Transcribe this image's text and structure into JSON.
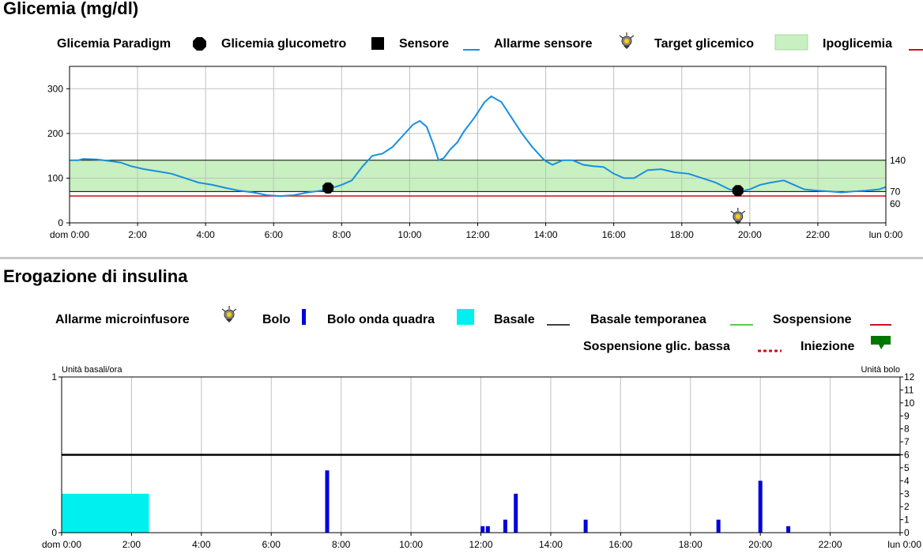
{
  "glucose_section": {
    "title": "Glicemia (mg/dl)",
    "legend": {
      "paradigm": "Glicemia Paradigm",
      "meter": "Glicemia glucometro",
      "sensor": "Sensore",
      "sensor_alarm": "Allarme sensore",
      "target": "Target glicemico",
      "hypo": "Ipoglicemia"
    }
  },
  "insulin_section": {
    "title": "Erogazione di insulina",
    "legend": {
      "pump_alarm": "Allarme microinfusore",
      "bolus": "Bolo",
      "square_bolus": "Bolo onda quadra",
      "basal": "Basale",
      "temp_basal": "Basale temporanea",
      "suspend": "Sospensione",
      "low_suspend": "Sospensione glic. bassa",
      "injection": "Iniezione"
    }
  },
  "colors": {
    "sensor": "#1a8fe0",
    "target_fill": "#c8f0c0",
    "hypo": "#c81414",
    "bolus": "#0000dd",
    "square_bolus": "#00f0f0",
    "temp_basal": "#22bb22",
    "injection": "#007700",
    "grid": "#c0c0c0"
  },
  "chart_data": [
    {
      "type": "line",
      "title": "Glicemia (mg/dl)",
      "xlim": [
        0,
        24
      ],
      "ylim": [
        0,
        350
      ],
      "x_ticks": [
        0,
        2,
        4,
        6,
        8,
        10,
        12,
        14,
        16,
        18,
        20,
        22,
        24
      ],
      "x_tick_labels": [
        "dom 0:00",
        "2:00",
        "4:00",
        "6:00",
        "8:00",
        "10:00",
        "12:00",
        "14:00",
        "16:00",
        "18:00",
        "20:00",
        "22:00",
        "lun 0:00"
      ],
      "y_ticks": [
        0,
        100,
        200,
        300
      ],
      "y_tick_labels": [
        "0",
        "100",
        "200",
        "300"
      ],
      "right_ticks": [
        140,
        70,
        60
      ],
      "right_tick_labels": [
        "140",
        "70",
        "60"
      ],
      "target_range": [
        70,
        140
      ],
      "hypo_threshold": 60,
      "grid": true,
      "series": [
        {
          "name": "Sensore",
          "x": [
            0,
            0.25,
            0.4,
            0.8,
            1.2,
            1.5,
            1.8,
            2.2,
            2.6,
            3.0,
            3.4,
            3.8,
            4.2,
            4.6,
            5.0,
            5.4,
            5.8,
            6.2,
            6.6,
            7.0,
            7.4,
            7.6,
            7.8,
            8.0,
            8.3,
            8.6,
            8.9,
            9.2,
            9.5,
            9.8,
            10.1,
            10.3,
            10.5,
            10.7,
            10.85,
            11.0,
            11.2,
            11.4,
            11.6,
            11.9,
            12.2,
            12.4,
            12.7,
            13.0,
            13.3,
            13.6,
            13.9,
            14.0,
            14.2,
            14.5,
            14.8,
            15.1,
            15.4,
            15.7,
            16.0,
            16.3,
            16.6,
            17.0,
            17.4,
            17.8,
            18.2,
            18.6,
            19.0,
            19.4,
            19.6,
            19.8,
            20.0,
            20.3,
            20.6,
            21.0,
            21.3,
            21.6,
            22.0,
            22.4,
            22.7,
            23.0,
            23.4,
            23.8,
            24.0
          ],
          "y": [
            140,
            140,
            143,
            142,
            138,
            135,
            127,
            120,
            115,
            110,
            100,
            90,
            85,
            78,
            72,
            68,
            62,
            60,
            62,
            68,
            72,
            78,
            80,
            85,
            95,
            125,
            150,
            155,
            170,
            195,
            220,
            228,
            215,
            175,
            140,
            145,
            165,
            180,
            205,
            235,
            270,
            283,
            270,
            235,
            200,
            170,
            145,
            138,
            130,
            140,
            140,
            130,
            127,
            125,
            110,
            100,
            100,
            118,
            120,
            113,
            110,
            100,
            90,
            75,
            72,
            72,
            75,
            85,
            90,
            95,
            85,
            75,
            72,
            70,
            68,
            70,
            72,
            75,
            80
          ]
        },
        {
          "name": "Glicemia Paradigm",
          "x": [
            7.6,
            19.65
          ],
          "y": [
            78,
            72
          ]
        }
      ],
      "sensor_alarms": [
        19.65
      ]
    },
    {
      "type": "bar",
      "title": "Erogazione di insulina",
      "xlim": [
        0,
        24
      ],
      "x_ticks": [
        0,
        2,
        4,
        6,
        8,
        10,
        12,
        14,
        16,
        18,
        20,
        22,
        24
      ],
      "x_tick_labels": [
        "dom 0:00",
        "2:00",
        "4:00",
        "6:00",
        "8:00",
        "10:00",
        "12:00",
        "14:00",
        "16:00",
        "18:00",
        "20:00",
        "22:00",
        "lun 0:00"
      ],
      "left_axis": {
        "label": "Unità basali/ora",
        "ylim": [
          0,
          1
        ],
        "ticks": [
          0,
          1
        ],
        "tick_labels": [
          "0",
          "1"
        ]
      },
      "right_axis": {
        "label": "Unità bolo",
        "ylim": [
          0,
          12
        ],
        "ticks": [
          0,
          1,
          2,
          3,
          4,
          5,
          6,
          7,
          8,
          9,
          10,
          11,
          12
        ],
        "tick_labels": [
          "0",
          "1",
          "2",
          "3",
          "4",
          "5",
          "6",
          "7",
          "8",
          "9",
          "10",
          "11",
          "12"
        ]
      },
      "grid": true,
      "basal_rate": 0.5,
      "square_bolus": {
        "start": 0,
        "end": 2.5,
        "height": 3
      },
      "boluses": [
        {
          "x": 7.6,
          "value": 4.8
        },
        {
          "x": 12.05,
          "value": 0.5
        },
        {
          "x": 12.2,
          "value": 0.5
        },
        {
          "x": 12.7,
          "value": 1
        },
        {
          "x": 13.0,
          "value": 3
        },
        {
          "x": 15.0,
          "value": 1
        },
        {
          "x": 18.8,
          "value": 1
        },
        {
          "x": 20.0,
          "value": 4
        },
        {
          "x": 20.8,
          "value": 0.5
        }
      ]
    }
  ]
}
